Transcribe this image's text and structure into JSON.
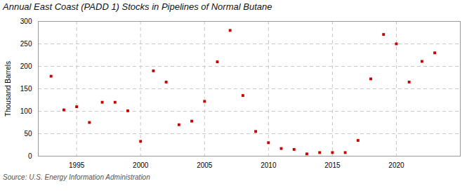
{
  "chart_data": {
    "type": "scatter",
    "title": "Annual East Coast (PADD 1) Stocks in Pipelines of Normal Butane",
    "ylabel": "Thousand Barrels",
    "source": "Source: U.S. Energy Information Administration",
    "color": "#cc0000",
    "marker": "square",
    "grid": true,
    "xlim": [
      1992,
      2025
    ],
    "ylim": [
      0,
      300
    ],
    "xticks": [
      1995,
      2000,
      2005,
      2010,
      2015,
      2020
    ],
    "yticks": [
      0,
      50,
      100,
      150,
      200,
      250,
      300
    ],
    "x": [
      1993,
      1994,
      1995,
      1996,
      1997,
      1998,
      1999,
      2000,
      2001,
      2002,
      2003,
      2004,
      2005,
      2006,
      2007,
      2008,
      2009,
      2010,
      2011,
      2012,
      2013,
      2014,
      2015,
      2016,
      2017,
      2018,
      2019,
      2020,
      2021,
      2022,
      2023
    ],
    "values": [
      178,
      103,
      110,
      75,
      120,
      120,
      101,
      33,
      190,
      165,
      70,
      78,
      122,
      210,
      280,
      135,
      55,
      30,
      17,
      15,
      5,
      8,
      8,
      8,
      35,
      172,
      271,
      250,
      165,
      211,
      230
    ]
  }
}
